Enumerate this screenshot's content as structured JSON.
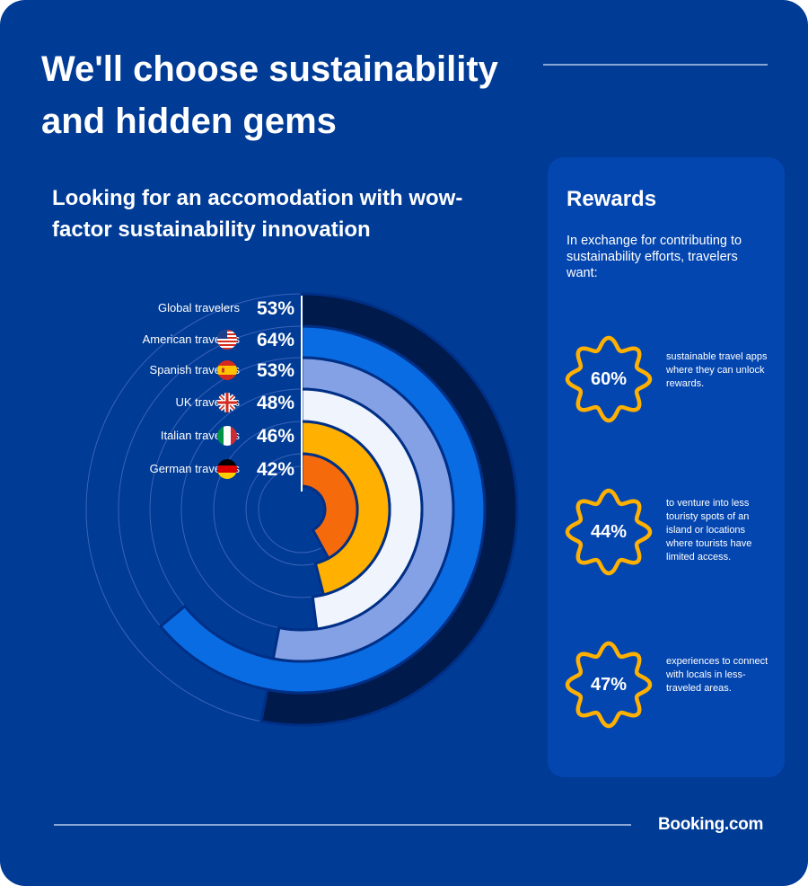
{
  "page": {
    "title": "We'll choose sustainability and hidden gems",
    "brand": "Booking.com"
  },
  "chart_data": {
    "type": "radial bar",
    "title": "Looking for an accomodation with wow-factor sustainability innovation",
    "unit": "%",
    "max": 100,
    "categories": [
      "Global travelers",
      "American travelers",
      "Spanish travelers",
      "UK travelers",
      "Italian travelers",
      "German travelers"
    ],
    "values": [
      53,
      64,
      53,
      48,
      46,
      42
    ],
    "value_labels": [
      "53%",
      "64%",
      "53%",
      "48%",
      "46%",
      "42%"
    ],
    "flags": [
      null,
      "us-flag-icon",
      "spain-flag-icon",
      "uk-flag-icon",
      "italy-flag-icon",
      "germany-flag-icon"
    ],
    "colors": [
      "#001a4b",
      "#0a6ce3",
      "#84a1e6",
      "#eff4fd",
      "#ffb000",
      "#f56a0a"
    ],
    "gap_color": "#002f86",
    "track_color": "#3a63b8"
  },
  "rewards": {
    "title": "Rewards",
    "description": "In exchange for contributing to sustainability efforts, travelers want:",
    "badge_color": "#ffb000",
    "items": [
      {
        "value": "60%",
        "text": "sustainable travel apps where they can unlock rewards."
      },
      {
        "value": "44%",
        "text": "to venture into less touristy spots of an island or locations where tourists have limited access."
      },
      {
        "value": "47%",
        "text": "experiences to connect with locals in less-traveled areas."
      }
    ]
  }
}
